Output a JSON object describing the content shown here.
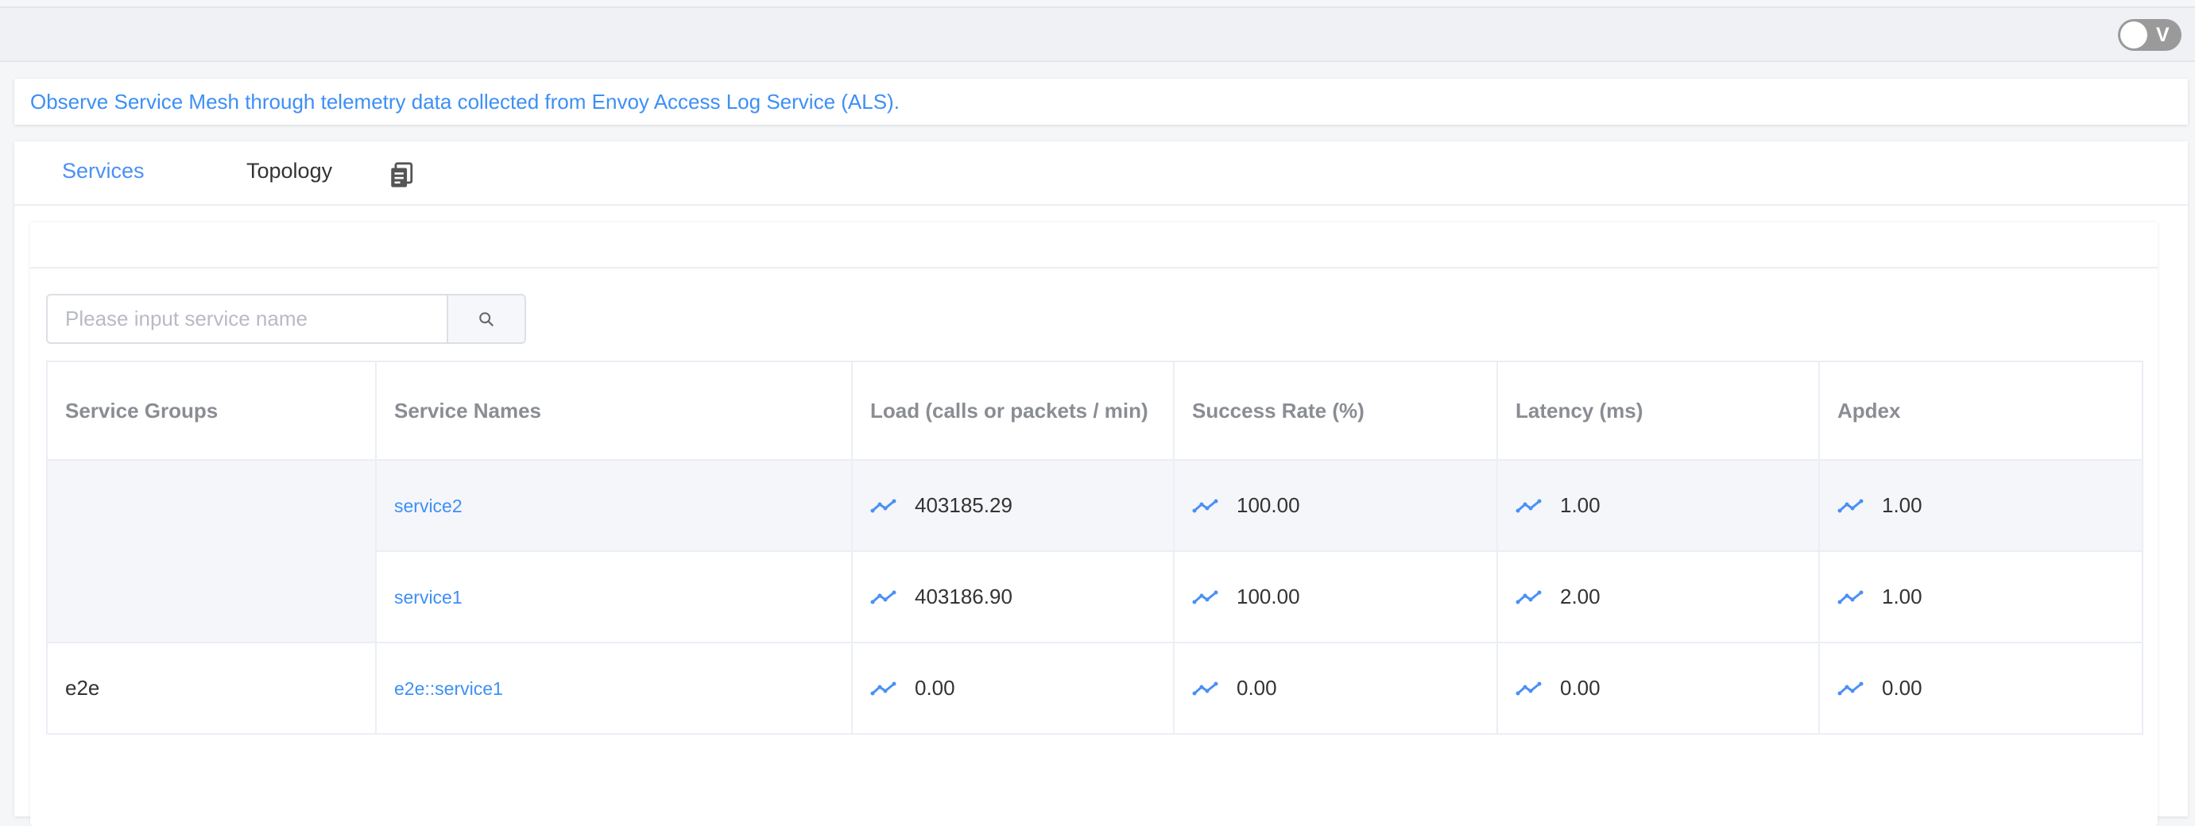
{
  "topbar": {
    "toggle_label": "V",
    "toggle_on": false
  },
  "banner": {
    "text": "Observe Service Mesh through telemetry data collected from Envoy Access Log Service (ALS)."
  },
  "tabs": [
    {
      "label": "Services",
      "active": true
    },
    {
      "label": "Topology",
      "active": false
    }
  ],
  "tab_icon": "document-copy-icon",
  "search": {
    "placeholder": "Please input service name",
    "value": "",
    "button_icon": "search-icon"
  },
  "colors": {
    "accent": "#3d8ff5",
    "trend_icon": "#4a90f5"
  },
  "table": {
    "headers": [
      "Service Groups",
      "Service Names",
      "Load (calls or packets / min)",
      "Success Rate (%)",
      "Latency (ms)",
      "Apdex"
    ],
    "groups": [
      {
        "name": "",
        "rows": [
          {
            "service": "service2",
            "load": "403185.29",
            "success": "100.00",
            "latency": "1.00",
            "apdex": "1.00"
          },
          {
            "service": "service1",
            "load": "403186.90",
            "success": "100.00",
            "latency": "2.00",
            "apdex": "1.00"
          }
        ]
      },
      {
        "name": "e2e",
        "rows": [
          {
            "service": "e2e::service1",
            "load": "0.00",
            "success": "0.00",
            "latency": "0.00",
            "apdex": "0.00"
          }
        ]
      }
    ]
  }
}
